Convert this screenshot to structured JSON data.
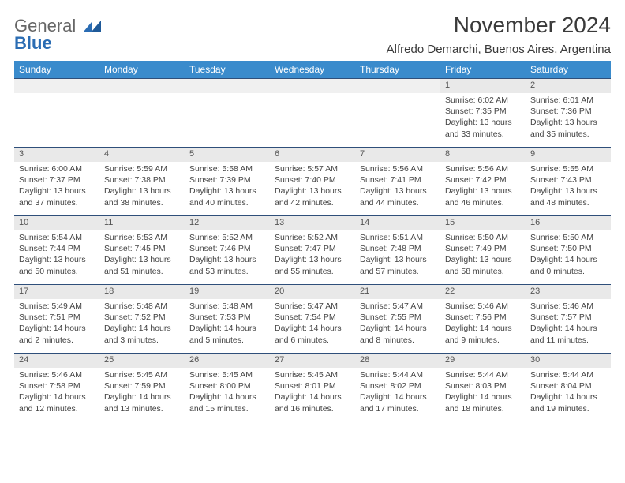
{
  "logo": {
    "word1": "General",
    "word2": "Blue"
  },
  "title": "November 2024",
  "location": "Alfredo Demarchi, Buenos Aires, Argentina",
  "headers": [
    "Sunday",
    "Monday",
    "Tuesday",
    "Wednesday",
    "Thursday",
    "Friday",
    "Saturday"
  ],
  "colors": {
    "header_bg": "#3a8bcc",
    "header_text": "#ffffff",
    "daynum_bg": "#e9e9e9",
    "rule": "#2f4f7a",
    "logo_gray": "#666666",
    "logo_blue": "#2a6cb3"
  },
  "weeks": [
    [
      null,
      null,
      null,
      null,
      null,
      {
        "n": "1",
        "sr": "Sunrise: 6:02 AM",
        "ss": "Sunset: 7:35 PM",
        "dl": "Daylight: 13 hours and 33 minutes."
      },
      {
        "n": "2",
        "sr": "Sunrise: 6:01 AM",
        "ss": "Sunset: 7:36 PM",
        "dl": "Daylight: 13 hours and 35 minutes."
      }
    ],
    [
      {
        "n": "3",
        "sr": "Sunrise: 6:00 AM",
        "ss": "Sunset: 7:37 PM",
        "dl": "Daylight: 13 hours and 37 minutes."
      },
      {
        "n": "4",
        "sr": "Sunrise: 5:59 AM",
        "ss": "Sunset: 7:38 PM",
        "dl": "Daylight: 13 hours and 38 minutes."
      },
      {
        "n": "5",
        "sr": "Sunrise: 5:58 AM",
        "ss": "Sunset: 7:39 PM",
        "dl": "Daylight: 13 hours and 40 minutes."
      },
      {
        "n": "6",
        "sr": "Sunrise: 5:57 AM",
        "ss": "Sunset: 7:40 PM",
        "dl": "Daylight: 13 hours and 42 minutes."
      },
      {
        "n": "7",
        "sr": "Sunrise: 5:56 AM",
        "ss": "Sunset: 7:41 PM",
        "dl": "Daylight: 13 hours and 44 minutes."
      },
      {
        "n": "8",
        "sr": "Sunrise: 5:56 AM",
        "ss": "Sunset: 7:42 PM",
        "dl": "Daylight: 13 hours and 46 minutes."
      },
      {
        "n": "9",
        "sr": "Sunrise: 5:55 AM",
        "ss": "Sunset: 7:43 PM",
        "dl": "Daylight: 13 hours and 48 minutes."
      }
    ],
    [
      {
        "n": "10",
        "sr": "Sunrise: 5:54 AM",
        "ss": "Sunset: 7:44 PM",
        "dl": "Daylight: 13 hours and 50 minutes."
      },
      {
        "n": "11",
        "sr": "Sunrise: 5:53 AM",
        "ss": "Sunset: 7:45 PM",
        "dl": "Daylight: 13 hours and 51 minutes."
      },
      {
        "n": "12",
        "sr": "Sunrise: 5:52 AM",
        "ss": "Sunset: 7:46 PM",
        "dl": "Daylight: 13 hours and 53 minutes."
      },
      {
        "n": "13",
        "sr": "Sunrise: 5:52 AM",
        "ss": "Sunset: 7:47 PM",
        "dl": "Daylight: 13 hours and 55 minutes."
      },
      {
        "n": "14",
        "sr": "Sunrise: 5:51 AM",
        "ss": "Sunset: 7:48 PM",
        "dl": "Daylight: 13 hours and 57 minutes."
      },
      {
        "n": "15",
        "sr": "Sunrise: 5:50 AM",
        "ss": "Sunset: 7:49 PM",
        "dl": "Daylight: 13 hours and 58 minutes."
      },
      {
        "n": "16",
        "sr": "Sunrise: 5:50 AM",
        "ss": "Sunset: 7:50 PM",
        "dl": "Daylight: 14 hours and 0 minutes."
      }
    ],
    [
      {
        "n": "17",
        "sr": "Sunrise: 5:49 AM",
        "ss": "Sunset: 7:51 PM",
        "dl": "Daylight: 14 hours and 2 minutes."
      },
      {
        "n": "18",
        "sr": "Sunrise: 5:48 AM",
        "ss": "Sunset: 7:52 PM",
        "dl": "Daylight: 14 hours and 3 minutes."
      },
      {
        "n": "19",
        "sr": "Sunrise: 5:48 AM",
        "ss": "Sunset: 7:53 PM",
        "dl": "Daylight: 14 hours and 5 minutes."
      },
      {
        "n": "20",
        "sr": "Sunrise: 5:47 AM",
        "ss": "Sunset: 7:54 PM",
        "dl": "Daylight: 14 hours and 6 minutes."
      },
      {
        "n": "21",
        "sr": "Sunrise: 5:47 AM",
        "ss": "Sunset: 7:55 PM",
        "dl": "Daylight: 14 hours and 8 minutes."
      },
      {
        "n": "22",
        "sr": "Sunrise: 5:46 AM",
        "ss": "Sunset: 7:56 PM",
        "dl": "Daylight: 14 hours and 9 minutes."
      },
      {
        "n": "23",
        "sr": "Sunrise: 5:46 AM",
        "ss": "Sunset: 7:57 PM",
        "dl": "Daylight: 14 hours and 11 minutes."
      }
    ],
    [
      {
        "n": "24",
        "sr": "Sunrise: 5:46 AM",
        "ss": "Sunset: 7:58 PM",
        "dl": "Daylight: 14 hours and 12 minutes."
      },
      {
        "n": "25",
        "sr": "Sunrise: 5:45 AM",
        "ss": "Sunset: 7:59 PM",
        "dl": "Daylight: 14 hours and 13 minutes."
      },
      {
        "n": "26",
        "sr": "Sunrise: 5:45 AM",
        "ss": "Sunset: 8:00 PM",
        "dl": "Daylight: 14 hours and 15 minutes."
      },
      {
        "n": "27",
        "sr": "Sunrise: 5:45 AM",
        "ss": "Sunset: 8:01 PM",
        "dl": "Daylight: 14 hours and 16 minutes."
      },
      {
        "n": "28",
        "sr": "Sunrise: 5:44 AM",
        "ss": "Sunset: 8:02 PM",
        "dl": "Daylight: 14 hours and 17 minutes."
      },
      {
        "n": "29",
        "sr": "Sunrise: 5:44 AM",
        "ss": "Sunset: 8:03 PM",
        "dl": "Daylight: 14 hours and 18 minutes."
      },
      {
        "n": "30",
        "sr": "Sunrise: 5:44 AM",
        "ss": "Sunset: 8:04 PM",
        "dl": "Daylight: 14 hours and 19 minutes."
      }
    ]
  ]
}
